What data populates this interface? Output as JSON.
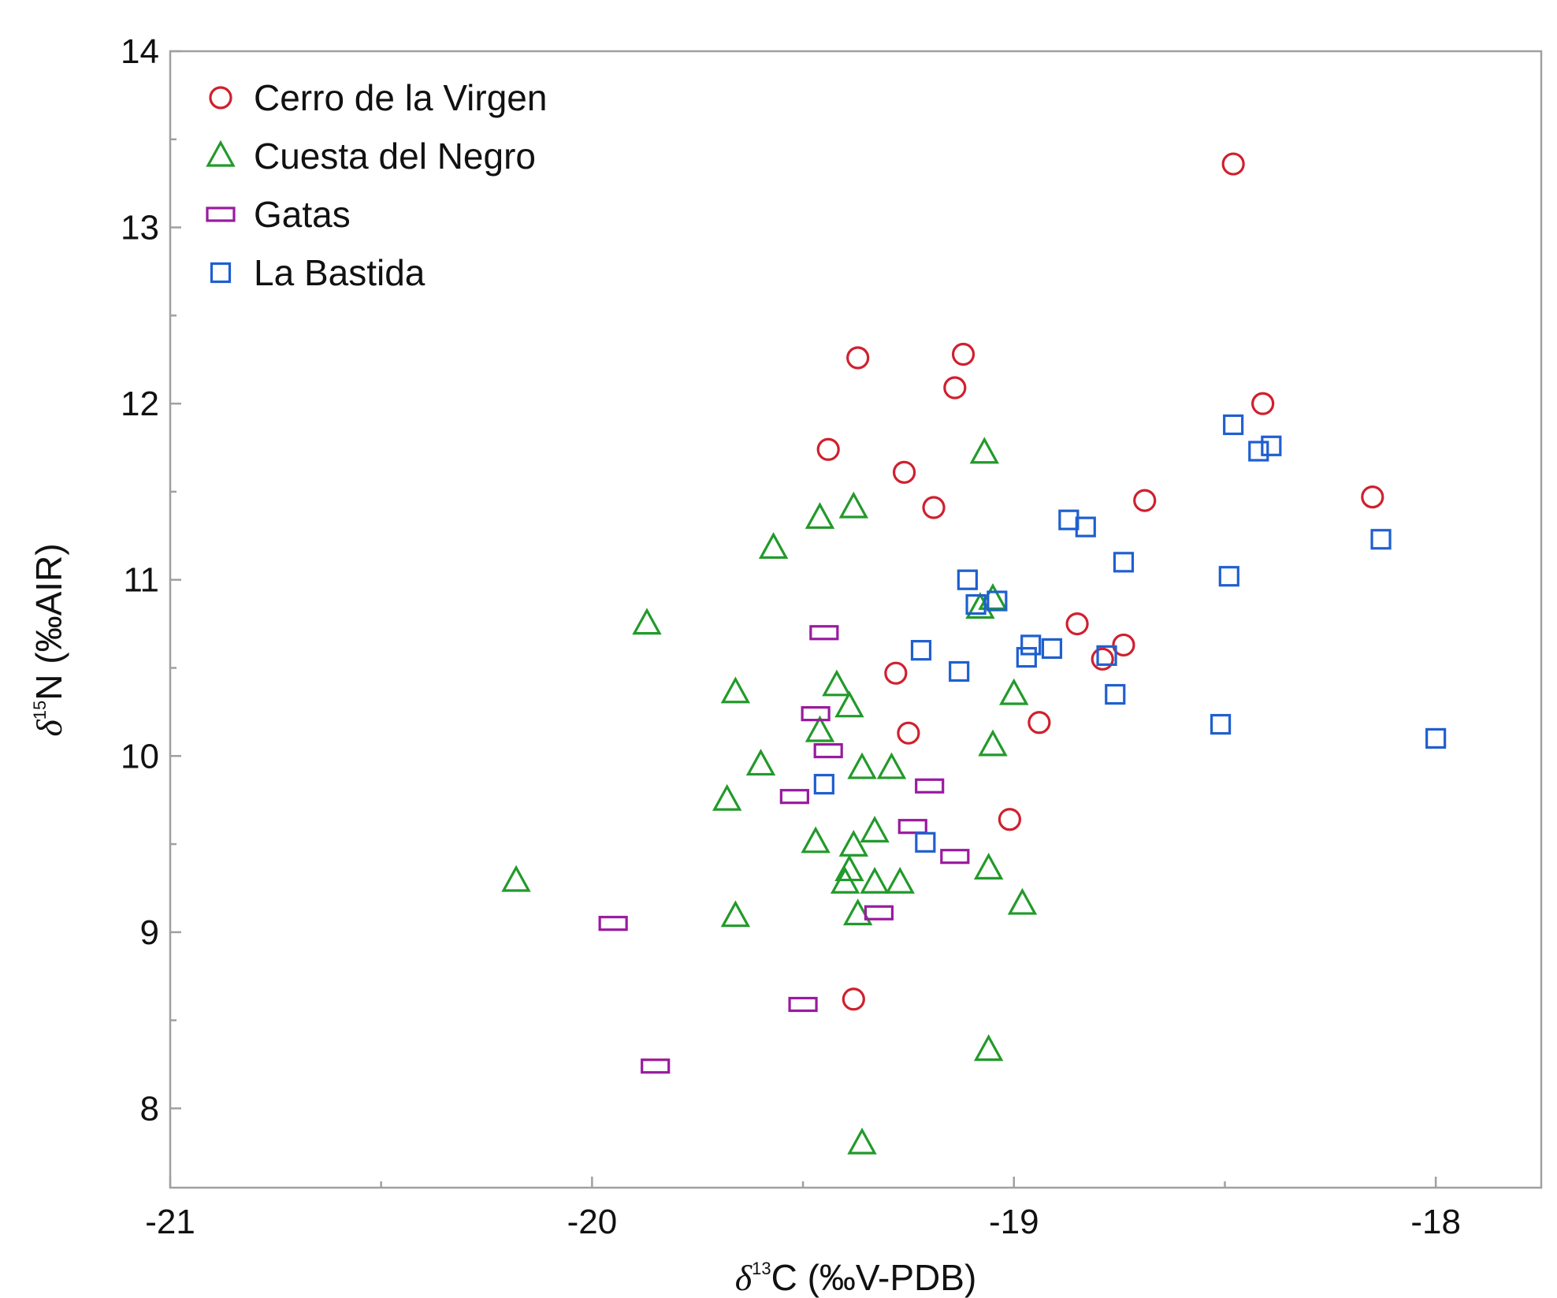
{
  "chart_data": {
    "type": "scatter",
    "title": "",
    "xlabel": "δ13C (‰V-PDB)",
    "ylabel": "δ15N (‰AIR)",
    "xlabel_parts": {
      "symbol": "δ",
      "sup": "13",
      "rest": "C (‰V-PDB)"
    },
    "ylabel_parts": {
      "symbol": "δ",
      "sup": "15",
      "rest": "N (‰AIR)"
    },
    "xlim": [
      -21,
      -17.75
    ],
    "ylim": [
      7.55,
      14
    ],
    "xticks": [
      -21,
      -20,
      -19,
      -18
    ],
    "yticks": [
      8,
      9,
      10,
      11,
      12,
      13,
      14
    ],
    "grid": false,
    "legend_position": "top-left",
    "series": [
      {
        "name": "Cerro de la Virgen",
        "marker": "circle",
        "color": "#d0202e",
        "points": [
          [
            -18.48,
            13.36
          ],
          [
            -19.37,
            12.26
          ],
          [
            -19.12,
            12.28
          ],
          [
            -19.14,
            12.09
          ],
          [
            -18.41,
            12.0
          ],
          [
            -19.44,
            11.74
          ],
          [
            -19.26,
            11.61
          ],
          [
            -19.19,
            11.41
          ],
          [
            -18.69,
            11.45
          ],
          [
            -18.15,
            11.47
          ],
          [
            -18.85,
            10.75
          ],
          [
            -18.74,
            10.63
          ],
          [
            -18.79,
            10.55
          ],
          [
            -19.28,
            10.47
          ],
          [
            -19.25,
            10.13
          ],
          [
            -18.94,
            10.19
          ],
          [
            -19.01,
            9.64
          ],
          [
            -19.38,
            8.62
          ]
        ]
      },
      {
        "name": "Cuesta del Negro",
        "marker": "triangle",
        "color": "#229a2a",
        "points": [
          [
            -19.07,
            11.72
          ],
          [
            -19.38,
            11.41
          ],
          [
            -19.46,
            11.35
          ],
          [
            -19.57,
            11.18
          ],
          [
            -19.87,
            10.75
          ],
          [
            -19.05,
            10.89
          ],
          [
            -19.08,
            10.84
          ],
          [
            -19.66,
            10.36
          ],
          [
            -19.42,
            10.4
          ],
          [
            -19.39,
            10.28
          ],
          [
            -19.46,
            10.14
          ],
          [
            -19.0,
            10.35
          ],
          [
            -19.05,
            10.06
          ],
          [
            -19.6,
            9.95
          ],
          [
            -19.36,
            9.93
          ],
          [
            -19.29,
            9.93
          ],
          [
            -19.68,
            9.75
          ],
          [
            -19.33,
            9.57
          ],
          [
            -19.47,
            9.51
          ],
          [
            -19.38,
            9.49
          ],
          [
            -19.39,
            9.35
          ],
          [
            -19.4,
            9.28
          ],
          [
            -19.33,
            9.28
          ],
          [
            -19.27,
            9.28
          ],
          [
            -19.06,
            9.36
          ],
          [
            -18.98,
            9.16
          ],
          [
            -20.18,
            9.29
          ],
          [
            -19.66,
            9.09
          ],
          [
            -19.37,
            9.1
          ],
          [
            -19.06,
            8.33
          ],
          [
            -19.36,
            7.8
          ]
        ]
      },
      {
        "name": "Gatas",
        "marker": "rect",
        "color": "#9a1aa0",
        "points": [
          [
            -19.45,
            10.7
          ],
          [
            -19.47,
            10.24
          ],
          [
            -19.44,
            10.03
          ],
          [
            -19.2,
            9.83
          ],
          [
            -19.52,
            9.77
          ],
          [
            -19.24,
            9.6
          ],
          [
            -19.14,
            9.43
          ],
          [
            -19.95,
            9.05
          ],
          [
            -19.32,
            9.11
          ],
          [
            -19.5,
            8.59
          ],
          [
            -19.85,
            8.24
          ]
        ]
      },
      {
        "name": "La Bastida",
        "marker": "square",
        "color": "#1f5fd0",
        "points": [
          [
            -18.48,
            11.88
          ],
          [
            -18.42,
            11.73
          ],
          [
            -18.39,
            11.76
          ],
          [
            -18.13,
            11.23
          ],
          [
            -18.87,
            11.34
          ],
          [
            -18.83,
            11.3
          ],
          [
            -18.74,
            11.1
          ],
          [
            -19.11,
            11.0
          ],
          [
            -19.09,
            10.86
          ],
          [
            -19.04,
            10.88
          ],
          [
            -18.49,
            11.02
          ],
          [
            -19.22,
            10.6
          ],
          [
            -18.96,
            10.63
          ],
          [
            -18.91,
            10.61
          ],
          [
            -18.97,
            10.56
          ],
          [
            -18.78,
            10.57
          ],
          [
            -19.13,
            10.48
          ],
          [
            -18.76,
            10.35
          ],
          [
            -18.51,
            10.18
          ],
          [
            -18.0,
            10.1
          ],
          [
            -19.45,
            9.84
          ],
          [
            -19.21,
            9.51
          ]
        ]
      }
    ]
  }
}
